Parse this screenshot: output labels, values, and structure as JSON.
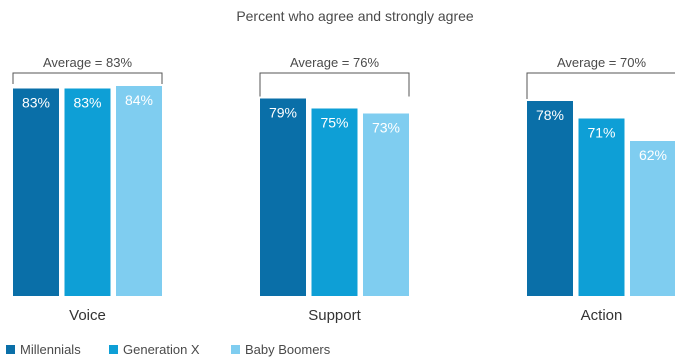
{
  "chart_data": {
    "type": "bar",
    "title": "Percent who agree and strongly agree",
    "xlabel": "",
    "ylabel": "",
    "ylim": [
      0,
      100
    ],
    "grid": false,
    "legend_position": "bottom-left",
    "categories": [
      "Voice",
      "Support",
      "Action"
    ],
    "series": [
      {
        "name": "Millennials",
        "values": [
          83,
          79,
          78
        ],
        "labels": [
          "83%",
          "79%",
          "78%"
        ],
        "color": "#0a6fa8"
      },
      {
        "name": "Generation X",
        "values": [
          83,
          75,
          71
        ],
        "labels": [
          "83%",
          "75%",
          "71%"
        ],
        "color": "#0e9fd6"
      },
      {
        "name": "Baby Boomers",
        "values": [
          84,
          73,
          62
        ],
        "labels": [
          "84%",
          "73%",
          "62%"
        ],
        "color": "#7fcdf0"
      }
    ],
    "group_averages": [
      {
        "category": "Voice",
        "label": "Average = 83%",
        "value": 83
      },
      {
        "category": "Support",
        "label": "Average = 76%",
        "value": 76
      },
      {
        "category": "Action",
        "label": "Average = 70%",
        "value": 70
      }
    ],
    "colors": {
      "text": "#4a4a4a",
      "bar_label": "#ffffff",
      "bracket": "#555555"
    }
  }
}
